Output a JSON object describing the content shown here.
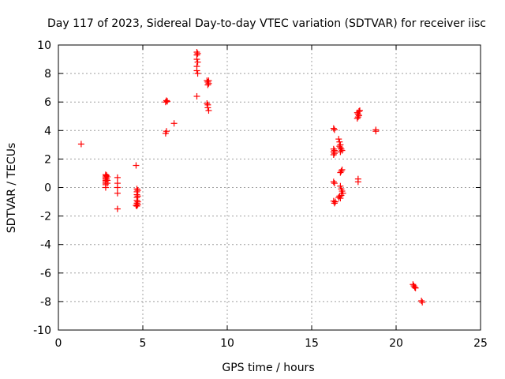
{
  "chart_data": {
    "type": "scatter",
    "title": "Day 117 of 2023, Sidereal Day-to-day VTEC variation (SDTVAR) for receiver iisc",
    "xlabel": "GPS time / hours",
    "ylabel": "SDTVAR / TECUs",
    "xlim": [
      0,
      25
    ],
    "ylim": [
      -10,
      10
    ],
    "xticks": [
      0,
      5,
      10,
      15,
      20,
      25
    ],
    "yticks": [
      -10,
      -8,
      -6,
      -4,
      -2,
      0,
      2,
      4,
      6,
      8,
      10
    ],
    "grid": true,
    "marker": "plus",
    "colors": {
      "marker": "#ff0000",
      "grid": "#a0a0a0",
      "axis": "#000000"
    },
    "series": [
      {
        "name": "SDTVAR",
        "points": [
          [
            1.35,
            3.05
          ],
          [
            2.8,
            0.9
          ],
          [
            2.8,
            0.8
          ],
          [
            2.8,
            0.7
          ],
          [
            2.8,
            0.6
          ],
          [
            2.8,
            0.5
          ],
          [
            2.8,
            0.4
          ],
          [
            2.8,
            0.3
          ],
          [
            2.8,
            0.2
          ],
          [
            2.8,
            0.0
          ],
          [
            2.85,
            0.85
          ],
          [
            2.85,
            0.6
          ],
          [
            2.9,
            0.75
          ],
          [
            2.9,
            0.5
          ],
          [
            2.9,
            0.3
          ],
          [
            3.5,
            0.7
          ],
          [
            3.5,
            0.3
          ],
          [
            3.5,
            0.0
          ],
          [
            3.5,
            -0.4
          ],
          [
            3.5,
            -1.5
          ],
          [
            4.6,
            1.55
          ],
          [
            4.65,
            -0.1
          ],
          [
            4.65,
            -0.3
          ],
          [
            4.65,
            -0.5
          ],
          [
            4.65,
            -0.7
          ],
          [
            4.65,
            -0.9
          ],
          [
            4.65,
            -1.1
          ],
          [
            4.65,
            -1.3
          ],
          [
            4.7,
            -0.2
          ],
          [
            4.7,
            -0.6
          ],
          [
            4.7,
            -1.0
          ],
          [
            4.7,
            -1.2
          ],
          [
            4.6,
            -1.25
          ],
          [
            6.35,
            6.0
          ],
          [
            6.4,
            6.1
          ],
          [
            6.45,
            6.05
          ],
          [
            6.35,
            3.8
          ],
          [
            6.4,
            3.95
          ],
          [
            6.85,
            4.5
          ],
          [
            8.2,
            9.5
          ],
          [
            8.2,
            9.3
          ],
          [
            8.25,
            9.4
          ],
          [
            8.2,
            9.0
          ],
          [
            8.25,
            8.8
          ],
          [
            8.2,
            8.5
          ],
          [
            8.2,
            8.2
          ],
          [
            8.25,
            8.0
          ],
          [
            8.2,
            6.4
          ],
          [
            8.8,
            7.5
          ],
          [
            8.85,
            7.4
          ],
          [
            8.9,
            7.3
          ],
          [
            8.85,
            7.2
          ],
          [
            8.9,
            7.5
          ],
          [
            8.8,
            5.9
          ],
          [
            8.85,
            5.8
          ],
          [
            8.85,
            5.6
          ],
          [
            8.9,
            5.4
          ],
          [
            16.3,
            4.15
          ],
          [
            16.35,
            4.05
          ],
          [
            16.3,
            2.7
          ],
          [
            16.35,
            2.6
          ],
          [
            16.3,
            2.5
          ],
          [
            16.35,
            2.4
          ],
          [
            16.3,
            2.3
          ],
          [
            16.3,
            0.4
          ],
          [
            16.35,
            0.3
          ],
          [
            16.3,
            -0.95
          ],
          [
            16.35,
            -1.1
          ],
          [
            16.4,
            -1.0
          ],
          [
            16.6,
            3.4
          ],
          [
            16.65,
            3.2
          ],
          [
            16.7,
            3.0
          ],
          [
            16.65,
            2.9
          ],
          [
            16.7,
            2.8
          ],
          [
            16.75,
            2.7
          ],
          [
            16.8,
            2.6
          ],
          [
            16.7,
            2.5
          ],
          [
            16.7,
            1.05
          ],
          [
            16.75,
            1.15
          ],
          [
            16.8,
            1.25
          ],
          [
            16.6,
            -0.7
          ],
          [
            16.65,
            -0.6
          ],
          [
            16.7,
            0.1
          ],
          [
            16.75,
            -0.1
          ],
          [
            16.8,
            -0.25
          ],
          [
            16.85,
            -0.4
          ],
          [
            16.75,
            -0.55
          ],
          [
            16.7,
            -0.75
          ],
          [
            17.7,
            5.25
          ],
          [
            17.75,
            5.15
          ],
          [
            17.8,
            5.35
          ],
          [
            17.8,
            5.05
          ],
          [
            17.75,
            4.95
          ],
          [
            17.7,
            4.85
          ],
          [
            17.85,
            5.4
          ],
          [
            17.75,
            0.6
          ],
          [
            17.75,
            0.4
          ],
          [
            18.8,
            4.05
          ],
          [
            18.8,
            3.95
          ],
          [
            21.0,
            -6.8
          ],
          [
            21.05,
            -6.9
          ],
          [
            21.1,
            -7.0
          ],
          [
            21.15,
            -7.05
          ],
          [
            21.5,
            -7.95
          ],
          [
            21.55,
            -8.05
          ]
        ]
      }
    ]
  }
}
